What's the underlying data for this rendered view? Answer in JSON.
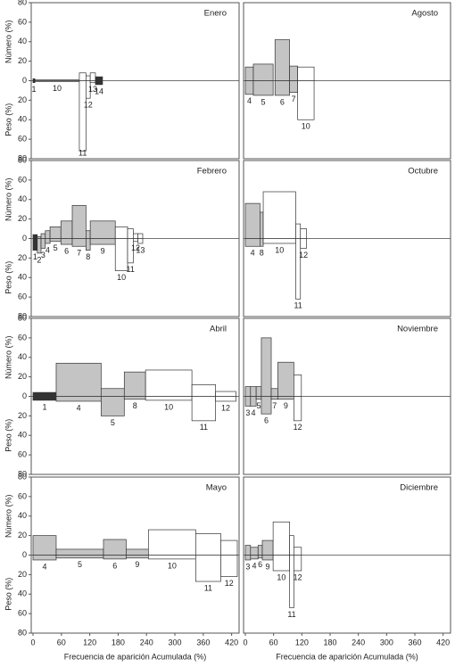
{
  "chart_data": [
    {
      "type": "costello",
      "title": "Enero",
      "categories": [
        "1",
        "10",
        "11",
        "12",
        "13",
        "14"
      ],
      "x0": [
        0,
        4,
        98,
        112,
        121,
        132
      ],
      "x1": [
        4,
        98,
        112,
        121,
        132,
        147
      ],
      "numero": [
        2,
        1,
        8,
        5,
        8,
        4
      ],
      "peso": [
        -2,
        -1,
        -72,
        -18,
        -2,
        -4
      ],
      "colors": [
        "#333333",
        "#ffffff",
        "#ffffff",
        "#ffffff",
        "#ffffff",
        "#333333"
      ],
      "xlim": [
        0,
        432
      ],
      "ylim": [
        -80,
        80
      ],
      "yticks": [
        80,
        60,
        40,
        20,
        0,
        {
          "value": -20,
          "label": "20"
        },
        {
          "value": -40,
          "label": "40"
        },
        {
          "value": -60,
          "label": "60"
        },
        {
          "value": -80,
          "label": "80"
        }
      ],
      "ylabel_top": "Número (%)",
      "ylabel_bottom": "Peso (%)"
    },
    {
      "type": "costello",
      "title": "Agosto",
      "categories": [
        "4",
        "5",
        "6",
        "7",
        "10"
      ],
      "x0": [
        0,
        17,
        63,
        94,
        111
      ],
      "x1": [
        17,
        59,
        94,
        111,
        146
      ],
      "numero": [
        14,
        17,
        42,
        15,
        14
      ],
      "peso": [
        -14,
        -15,
        -15,
        -12,
        -40
      ],
      "colors": [
        "#c4c4c4",
        "#c4c4c4",
        "#c4c4c4",
        "#c4c4c4",
        "#ffffff"
      ],
      "xlim": [
        0,
        432
      ],
      "ylim": [
        -80,
        80
      ]
    },
    {
      "type": "costello",
      "title": "Febrero",
      "categories": [
        "1",
        "2",
        "3",
        "4",
        "5",
        "6",
        "7",
        "8",
        "9",
        "10",
        "11",
        "12",
        "13"
      ],
      "x0": [
        0,
        9,
        17,
        26,
        36,
        59,
        83,
        112,
        121,
        174,
        200,
        212,
        222
      ],
      "x1": [
        9,
        17,
        26,
        36,
        59,
        83,
        112,
        121,
        174,
        200,
        212,
        222,
        232
      ],
      "numero": [
        4,
        2,
        5,
        8,
        12,
        18,
        34,
        8,
        18,
        12,
        10,
        5,
        5
      ],
      "peso": [
        -12,
        -15,
        -10,
        -5,
        -3,
        -6,
        -8,
        -12,
        -6,
        -33,
        -25,
        -3,
        -5
      ],
      "colors": [
        "#333333",
        "#c4c4c4",
        "#c4c4c4",
        "#c4c4c4",
        "#c4c4c4",
        "#c4c4c4",
        "#c4c4c4",
        "#c4c4c4",
        "#c4c4c4",
        "#ffffff",
        "#ffffff",
        "#ffffff",
        "#ffffff"
      ],
      "xlim": [
        0,
        432
      ],
      "ylim": [
        -80,
        80
      ],
      "yticks": [
        80,
        60,
        40,
        20,
        0,
        {
          "value": -20,
          "label": "20"
        },
        {
          "value": -40,
          "label": "40"
        },
        {
          "value": -60,
          "label": "60"
        },
        {
          "value": -80,
          "label": "80"
        }
      ],
      "ylabel_top": "Número (%)",
      "ylabel_bottom": "Peso (%)"
    },
    {
      "type": "costello",
      "title": "Octubre",
      "categories": [
        "4",
        "8",
        "10",
        "11",
        "12"
      ],
      "x0": [
        0,
        31,
        38,
        107,
        117
      ],
      "x1": [
        31,
        38,
        107,
        117,
        130
      ],
      "numero": [
        36,
        27,
        48,
        15,
        10
      ],
      "peso": [
        -8,
        -8,
        -5,
        -62,
        -10
      ],
      "colors": [
        "#c4c4c4",
        "#c4c4c4",
        "#ffffff",
        "#ffffff",
        "#ffffff"
      ],
      "xlim": [
        0,
        432
      ],
      "ylim": [
        -80,
        80
      ]
    },
    {
      "type": "costello",
      "title": "Abril",
      "categories": [
        "1",
        "4",
        "5",
        "8",
        "10",
        "11",
        "12"
      ],
      "x0": [
        0,
        49,
        144,
        193,
        238,
        336,
        386
      ],
      "x1": [
        49,
        144,
        193,
        238,
        336,
        386,
        429
      ],
      "numero": [
        4,
        34,
        8,
        25,
        27,
        12,
        5
      ],
      "peso": [
        -4,
        -5,
        -20,
        -3,
        -4,
        -25,
        -5
      ],
      "colors": [
        "#333333",
        "#c4c4c4",
        "#c4c4c4",
        "#c4c4c4",
        "#ffffff",
        "#ffffff",
        "#ffffff"
      ],
      "xlim": [
        0,
        432
      ],
      "ylim": [
        -80,
        80
      ],
      "yticks": [
        80,
        60,
        40,
        20,
        0,
        {
          "value": -20,
          "label": "20"
        },
        {
          "value": -40,
          "label": "40"
        },
        {
          "value": -60,
          "label": "60"
        },
        {
          "value": -80,
          "label": "80"
        }
      ],
      "ylabel_top": "Número (%)",
      "ylabel_bottom": "Peso (%)"
    },
    {
      "type": "costello",
      "title": "Noviembre",
      "categories": [
        "3",
        "4",
        "5",
        "6",
        "7",
        "9",
        "12"
      ],
      "x0": [
        0,
        11,
        23,
        34,
        55,
        69,
        103
      ],
      "x1": [
        11,
        23,
        34,
        55,
        69,
        103,
        119
      ],
      "numero": [
        10,
        10,
        10,
        60,
        8,
        35,
        22
      ],
      "peso": [
        -10,
        -10,
        -3,
        -18,
        -3,
        -3,
        -25
      ],
      "colors": [
        "#c4c4c4",
        "#c4c4c4",
        "#c4c4c4",
        "#c4c4c4",
        "#c4c4c4",
        "#c4c4c4",
        "#ffffff"
      ],
      "xlim": [
        0,
        432
      ],
      "ylim": [
        -80,
        80
      ]
    },
    {
      "type": "costello",
      "title": "Mayo",
      "categories": [
        "4",
        "5",
        "6",
        "9",
        "10",
        "11",
        "12"
      ],
      "x0": [
        0,
        49,
        149,
        197,
        244,
        344,
        397
      ],
      "x1": [
        49,
        149,
        197,
        244,
        344,
        397,
        432
      ],
      "numero": [
        20,
        6,
        16,
        6,
        26,
        22,
        15
      ],
      "peso": [
        -5,
        -3,
        -4,
        -3,
        -4,
        -27,
        -22
      ],
      "colors": [
        "#c4c4c4",
        "#c4c4c4",
        "#c4c4c4",
        "#c4c4c4",
        "#ffffff",
        "#ffffff",
        "#ffffff"
      ],
      "xlim": [
        0,
        432
      ],
      "ylim": [
        -80,
        80
      ],
      "yticks": [
        80,
        60,
        40,
        20,
        0,
        {
          "value": -20,
          "label": "20"
        },
        {
          "value": -40,
          "label": "40"
        },
        {
          "value": -60,
          "label": "60"
        },
        {
          "value": -80,
          "label": "80"
        }
      ],
      "ylabel_top": "Número (%)",
      "ylabel_bottom": "Peso (%)",
      "xticks": [
        0,
        60,
        120,
        180,
        240,
        300,
        360,
        420
      ],
      "xlabel": "Frecuencia de aparición Acumulada (%)"
    },
    {
      "type": "costello",
      "title": "Diciembre",
      "categories": [
        "3",
        "4",
        "6",
        "9",
        "10",
        "11",
        "12"
      ],
      "x0": [
        0,
        11,
        27,
        36,
        59,
        94,
        103
      ],
      "x1": [
        11,
        27,
        36,
        59,
        94,
        103,
        119
      ],
      "numero": [
        10,
        8,
        10,
        15,
        34,
        20,
        8
      ],
      "peso": [
        -5,
        -4,
        -3,
        -5,
        -16,
        -54,
        -16
      ],
      "colors": [
        "#c4c4c4",
        "#c4c4c4",
        "#c4c4c4",
        "#c4c4c4",
        "#ffffff",
        "#ffffff",
        "#ffffff"
      ],
      "xlim": [
        0,
        432
      ],
      "ylim": [
        -80,
        80
      ],
      "xticks": [
        0,
        60,
        120,
        180,
        240,
        300,
        360,
        420
      ],
      "xlabel": "Frecuencia de aparición Acumulada (%)"
    }
  ]
}
